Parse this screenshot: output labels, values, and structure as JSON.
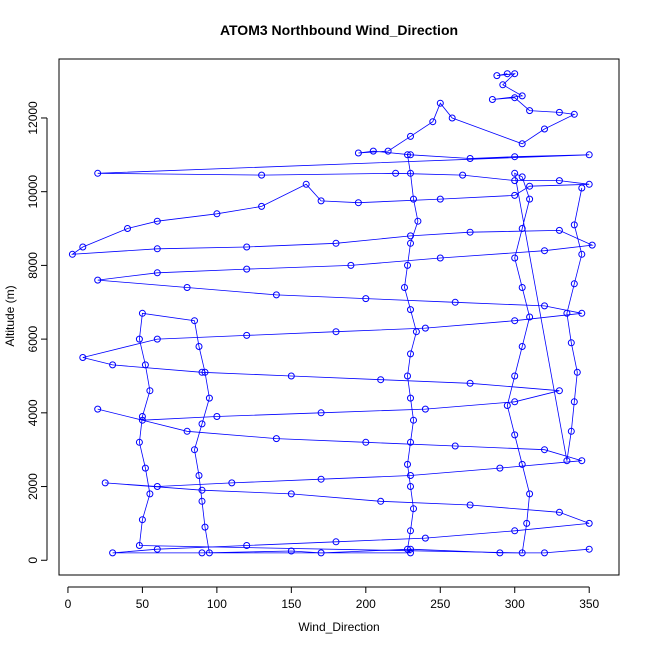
{
  "chart_data": {
    "type": "scatter",
    "title": "ATOM3 Northbound Wind_Direction",
    "xlabel": "Wind_Direction",
    "ylabel": "Altitude (m)",
    "xlim": [
      -6,
      370
    ],
    "ylim": [
      -400,
      13600
    ],
    "x_ticks": [
      0,
      50,
      100,
      150,
      200,
      250,
      300,
      350
    ],
    "y_ticks": [
      0,
      2000,
      4000,
      6000,
      8000,
      10000,
      12000
    ],
    "grid": false,
    "marker": "open-circle",
    "lines_connected": true,
    "color": "#0000FF",
    "series": [
      {
        "values": [
          [
            295,
            13200
          ],
          [
            288,
            13150
          ],
          [
            300,
            13200
          ],
          [
            292,
            12900
          ],
          [
            305,
            12600
          ],
          [
            285,
            12500
          ],
          [
            300,
            12550
          ],
          [
            310,
            12200
          ],
          [
            330,
            12150
          ],
          [
            340,
            12100
          ],
          [
            320,
            11700
          ],
          [
            305,
            11300
          ],
          [
            258,
            12000
          ],
          [
            250,
            12400
          ],
          [
            245,
            11900
          ],
          [
            230,
            11500
          ],
          [
            215,
            11100
          ],
          [
            195,
            11050
          ],
          [
            205,
            11100
          ],
          [
            230,
            11000
          ],
          [
            270,
            10900
          ],
          [
            300,
            10950
          ],
          [
            350,
            11000
          ],
          [
            20,
            10500
          ],
          [
            130,
            10450
          ],
          [
            220,
            10500
          ],
          [
            265,
            10450
          ],
          [
            300,
            10300
          ],
          [
            330,
            10300
          ],
          [
            350,
            10200
          ],
          [
            310,
            10150
          ],
          [
            300,
            9900
          ],
          [
            250,
            9800
          ],
          [
            195,
            9700
          ],
          [
            170,
            9750
          ],
          [
            160,
            10200
          ],
          [
            130,
            9600
          ],
          [
            100,
            9400
          ],
          [
            60,
            9200
          ],
          [
            40,
            9000
          ],
          [
            10,
            8500
          ],
          [
            3,
            8300
          ],
          [
            60,
            8450
          ],
          [
            120,
            8500
          ],
          [
            180,
            8600
          ],
          [
            230,
            8800
          ],
          [
            270,
            8900
          ],
          [
            330,
            8950
          ],
          [
            352,
            8550
          ],
          [
            320,
            8400
          ],
          [
            250,
            8200
          ],
          [
            190,
            8000
          ],
          [
            120,
            7900
          ],
          [
            60,
            7800
          ],
          [
            20,
            7600
          ],
          [
            80,
            7400
          ],
          [
            140,
            7200
          ],
          [
            200,
            7100
          ],
          [
            260,
            7000
          ],
          [
            320,
            6900
          ],
          [
            345,
            6700
          ],
          [
            300,
            6500
          ],
          [
            240,
            6300
          ],
          [
            180,
            6200
          ],
          [
            120,
            6100
          ],
          [
            60,
            6000
          ],
          [
            10,
            5500
          ],
          [
            30,
            5300
          ],
          [
            90,
            5100
          ],
          [
            150,
            5000
          ],
          [
            210,
            4900
          ],
          [
            270,
            4800
          ],
          [
            330,
            4600
          ],
          [
            300,
            4300
          ],
          [
            240,
            4100
          ],
          [
            170,
            4000
          ],
          [
            100,
            3900
          ],
          [
            50,
            3800
          ],
          [
            20,
            4100
          ],
          [
            80,
            3500
          ],
          [
            140,
            3300
          ],
          [
            200,
            3200
          ],
          [
            260,
            3100
          ],
          [
            320,
            3000
          ],
          [
            345,
            2700
          ],
          [
            290,
            2500
          ],
          [
            230,
            2300
          ],
          [
            170,
            2200
          ],
          [
            110,
            2100
          ],
          [
            60,
            2000
          ],
          [
            25,
            2100
          ],
          [
            90,
            1900
          ],
          [
            150,
            1800
          ],
          [
            210,
            1600
          ],
          [
            270,
            1500
          ],
          [
            330,
            1300
          ],
          [
            350,
            1000
          ],
          [
            300,
            800
          ],
          [
            240,
            600
          ],
          [
            180,
            500
          ],
          [
            120,
            400
          ],
          [
            60,
            300
          ],
          [
            30,
            200
          ],
          [
            90,
            200
          ],
          [
            150,
            250
          ],
          [
            170,
            200
          ],
          [
            230,
            300
          ],
          [
            290,
            200
          ],
          [
            320,
            200
          ],
          [
            350,
            300
          ]
        ]
      },
      {
        "values": [
          [
            228,
            11000
          ],
          [
            230,
            10500
          ],
          [
            232,
            9800
          ],
          [
            235,
            9200
          ],
          [
            230,
            8600
          ],
          [
            228,
            8000
          ],
          [
            226,
            7400
          ],
          [
            230,
            6800
          ],
          [
            234,
            6200
          ],
          [
            230,
            5600
          ],
          [
            228,
            5000
          ],
          [
            230,
            4400
          ],
          [
            232,
            3800
          ],
          [
            230,
            3200
          ],
          [
            228,
            2600
          ],
          [
            230,
            2000
          ],
          [
            232,
            1400
          ],
          [
            230,
            800
          ],
          [
            228,
            300
          ],
          [
            230,
            200
          ],
          [
            95,
            200
          ],
          [
            92,
            900
          ],
          [
            90,
            1600
          ],
          [
            88,
            2300
          ],
          [
            85,
            3000
          ],
          [
            90,
            3700
          ],
          [
            95,
            4400
          ],
          [
            92,
            5100
          ],
          [
            88,
            5800
          ],
          [
            85,
            6500
          ],
          [
            50,
            6700
          ],
          [
            48,
            6000
          ],
          [
            52,
            5300
          ],
          [
            55,
            4600
          ],
          [
            50,
            3900
          ],
          [
            48,
            3200
          ],
          [
            52,
            2500
          ],
          [
            55,
            1800
          ],
          [
            50,
            1100
          ],
          [
            48,
            400
          ],
          [
            305,
            200
          ],
          [
            308,
            1000
          ],
          [
            310,
            1800
          ],
          [
            305,
            2600
          ],
          [
            300,
            3400
          ],
          [
            295,
            4200
          ],
          [
            300,
            5000
          ],
          [
            305,
            5800
          ],
          [
            310,
            6600
          ],
          [
            305,
            7400
          ],
          [
            300,
            8200
          ],
          [
            305,
            9000
          ],
          [
            310,
            9800
          ],
          [
            305,
            10400
          ],
          [
            300,
            10500
          ],
          [
            335,
            2700
          ],
          [
            338,
            3500
          ],
          [
            340,
            4300
          ],
          [
            342,
            5100
          ],
          [
            338,
            5900
          ],
          [
            335,
            6700
          ],
          [
            340,
            7500
          ],
          [
            345,
            8300
          ],
          [
            340,
            9100
          ],
          [
            345,
            10100
          ]
        ]
      }
    ]
  }
}
